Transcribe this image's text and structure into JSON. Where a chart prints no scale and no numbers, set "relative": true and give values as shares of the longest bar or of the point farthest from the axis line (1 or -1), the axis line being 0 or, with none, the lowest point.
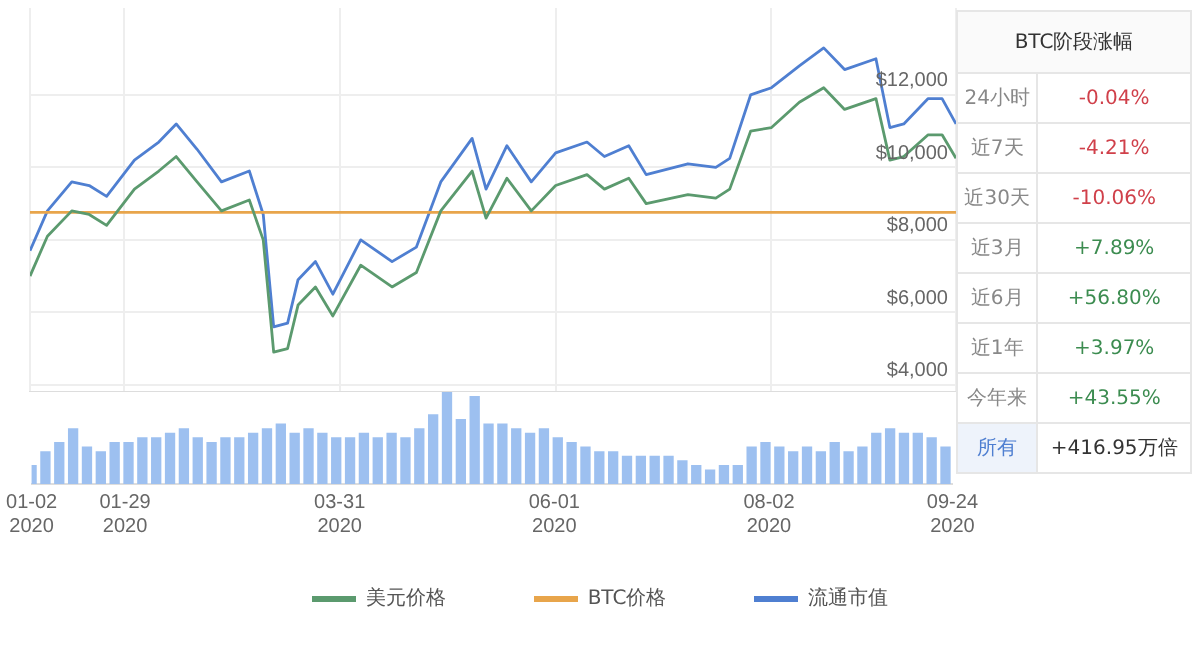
{
  "chart_data": [
    {
      "type": "line",
      "x": [
        "2020-01-02",
        "2020-01-07",
        "2020-01-14",
        "2020-01-19",
        "2020-01-24",
        "2020-02-01",
        "2020-02-08",
        "2020-02-13",
        "2020-02-19",
        "2020-02-26",
        "2020-03-05",
        "2020-03-09",
        "2020-03-12",
        "2020-03-16",
        "2020-03-19",
        "2020-03-24",
        "2020-03-29",
        "2020-04-06",
        "2020-04-15",
        "2020-04-22",
        "2020-04-29",
        "2020-05-08",
        "2020-05-12",
        "2020-05-18",
        "2020-05-25",
        "2020-06-01",
        "2020-06-10",
        "2020-06-15",
        "2020-06-22",
        "2020-06-27",
        "2020-07-09",
        "2020-07-17",
        "2020-07-21",
        "2020-07-27",
        "2020-08-02",
        "2020-08-10",
        "2020-08-17",
        "2020-08-23",
        "2020-09-01",
        "2020-09-05",
        "2020-09-09",
        "2020-09-16",
        "2020-09-20",
        "2020-09-24"
      ],
      "series": [
        {
          "name": "美元价格",
          "color": "#5b9a6e",
          "values": [
            7000,
            8100,
            8800,
            8700,
            8400,
            9400,
            9900,
            10300,
            9600,
            8800,
            9100,
            8000,
            4900,
            5000,
            6200,
            6700,
            5900,
            7300,
            6700,
            7100,
            8800,
            9900,
            8600,
            9700,
            8800,
            9500,
            9800,
            9400,
            9700,
            9000,
            9250,
            9150,
            9400,
            11000,
            11100,
            11800,
            12200,
            11600,
            11900,
            10200,
            10300,
            10900,
            10900,
            10250
          ]
        },
        {
          "name": "BTC价格",
          "color": "#e8a54b",
          "x": [
            "2020-01-02",
            "2020-09-24"
          ],
          "values": [
            8760,
            8760
          ]
        },
        {
          "name": "流通市值",
          "color": "#4f7fd1",
          "values": [
            7700,
            8800,
            9600,
            9500,
            9200,
            10200,
            10700,
            11200,
            10500,
            9600,
            9900,
            8700,
            5600,
            5700,
            6900,
            7400,
            6500,
            8000,
            7400,
            7800,
            9600,
            10800,
            9400,
            10600,
            9600,
            10400,
            10700,
            10300,
            10600,
            9800,
            10100,
            10000,
            10250,
            12000,
            12200,
            12800,
            13300,
            12700,
            13000,
            11100,
            11200,
            11900,
            11900,
            11200
          ]
        }
      ],
      "xlim": [
        "2020-01-02",
        "2020-09-24"
      ],
      "ylim": [
        3800,
        14400
      ],
      "yticks": [
        {
          "value": 4000,
          "label": "$4,000"
        },
        {
          "value": 6000,
          "label": "$6,000"
        },
        {
          "value": 8000,
          "label": "$8,000"
        },
        {
          "value": 10000,
          "label": "$10,000"
        },
        {
          "value": 12000,
          "label": "$12,000"
        }
      ],
      "xticks": [
        "2020-01-02",
        "2020-01-29",
        "2020-03-31",
        "2020-06-01",
        "2020-08-02",
        "2020-09-24"
      ],
      "tick_labels": "y",
      "grid": true,
      "legend": "bottom",
      "marker": "none",
      "annotations": [
        "BTC阶段涨幅",
        "24小时",
        "-0.04%",
        "近7天",
        "-4.21%",
        "近30天",
        "-10.06%",
        "近3月",
        "+7.89%",
        "近6月",
        "+56.80%",
        "近1年",
        "+3.97%",
        "今年来",
        "+43.55%",
        "所有",
        "+416.95万倍"
      ]
    },
    {
      "type": "bar",
      "relative": true,
      "color": "#9dc0f0",
      "x": [
        "2020-01-02",
        "2020-01-06",
        "2020-01-10",
        "2020-01-14",
        "2020-01-18",
        "2020-01-22",
        "2020-01-26",
        "2020-01-30",
        "2020-02-03",
        "2020-02-07",
        "2020-02-11",
        "2020-02-15",
        "2020-02-19",
        "2020-02-23",
        "2020-02-27",
        "2020-03-02",
        "2020-03-06",
        "2020-03-10",
        "2020-03-14",
        "2020-03-18",
        "2020-03-22",
        "2020-03-26",
        "2020-03-30",
        "2020-04-03",
        "2020-04-07",
        "2020-04-11",
        "2020-04-15",
        "2020-04-19",
        "2020-04-23",
        "2020-04-27",
        "2020-05-01",
        "2020-05-05",
        "2020-05-09",
        "2020-05-13",
        "2020-05-17",
        "2020-05-21",
        "2020-05-25",
        "2020-05-29",
        "2020-06-02",
        "2020-06-06",
        "2020-06-10",
        "2020-06-14",
        "2020-06-18",
        "2020-06-22",
        "2020-06-26",
        "2020-06-30",
        "2020-07-04",
        "2020-07-08",
        "2020-07-12",
        "2020-07-16",
        "2020-07-20",
        "2020-07-24",
        "2020-07-28",
        "2020-08-01",
        "2020-08-05",
        "2020-08-09",
        "2020-08-13",
        "2020-08-17",
        "2020-08-21",
        "2020-08-25",
        "2020-08-29",
        "2020-09-02",
        "2020-09-06",
        "2020-09-10",
        "2020-09-14",
        "2020-09-18",
        "2020-09-22"
      ],
      "values": [
        0.2,
        0.35,
        0.45,
        0.6,
        0.4,
        0.35,
        0.45,
        0.45,
        0.5,
        0.5,
        0.55,
        0.6,
        0.5,
        0.45,
        0.5,
        0.5,
        0.55,
        0.6,
        0.65,
        0.55,
        0.6,
        0.55,
        0.5,
        0.5,
        0.55,
        0.5,
        0.55,
        0.5,
        0.6,
        0.75,
        1,
        0.7,
        0.95,
        0.65,
        0.65,
        0.6,
        0.55,
        0.6,
        0.5,
        0.45,
        0.4,
        0.35,
        0.35,
        0.3,
        0.3,
        0.3,
        0.3,
        0.25,
        0.2,
        0.15,
        0.2,
        0.2,
        0.4,
        0.45,
        0.4,
        0.35,
        0.4,
        0.35,
        0.45,
        0.35,
        0.4,
        0.55,
        0.6,
        0.55,
        0.55,
        0.5,
        0.4
      ],
      "xlim": [
        "2020-01-02",
        "2020-09-24"
      ],
      "xticks": [
        {
          "value": "2020-01-02",
          "label": "01-02 2020"
        },
        {
          "value": "2020-01-29",
          "label": "01-29 2020"
        },
        {
          "value": "2020-03-31",
          "label": "03-31 2020"
        },
        {
          "value": "2020-06-01",
          "label": "06-01 2020"
        },
        {
          "value": "2020-08-02",
          "label": "08-02 2020"
        },
        {
          "value": "2020-09-24",
          "label": "09-24 2020"
        }
      ]
    }
  ]
}
